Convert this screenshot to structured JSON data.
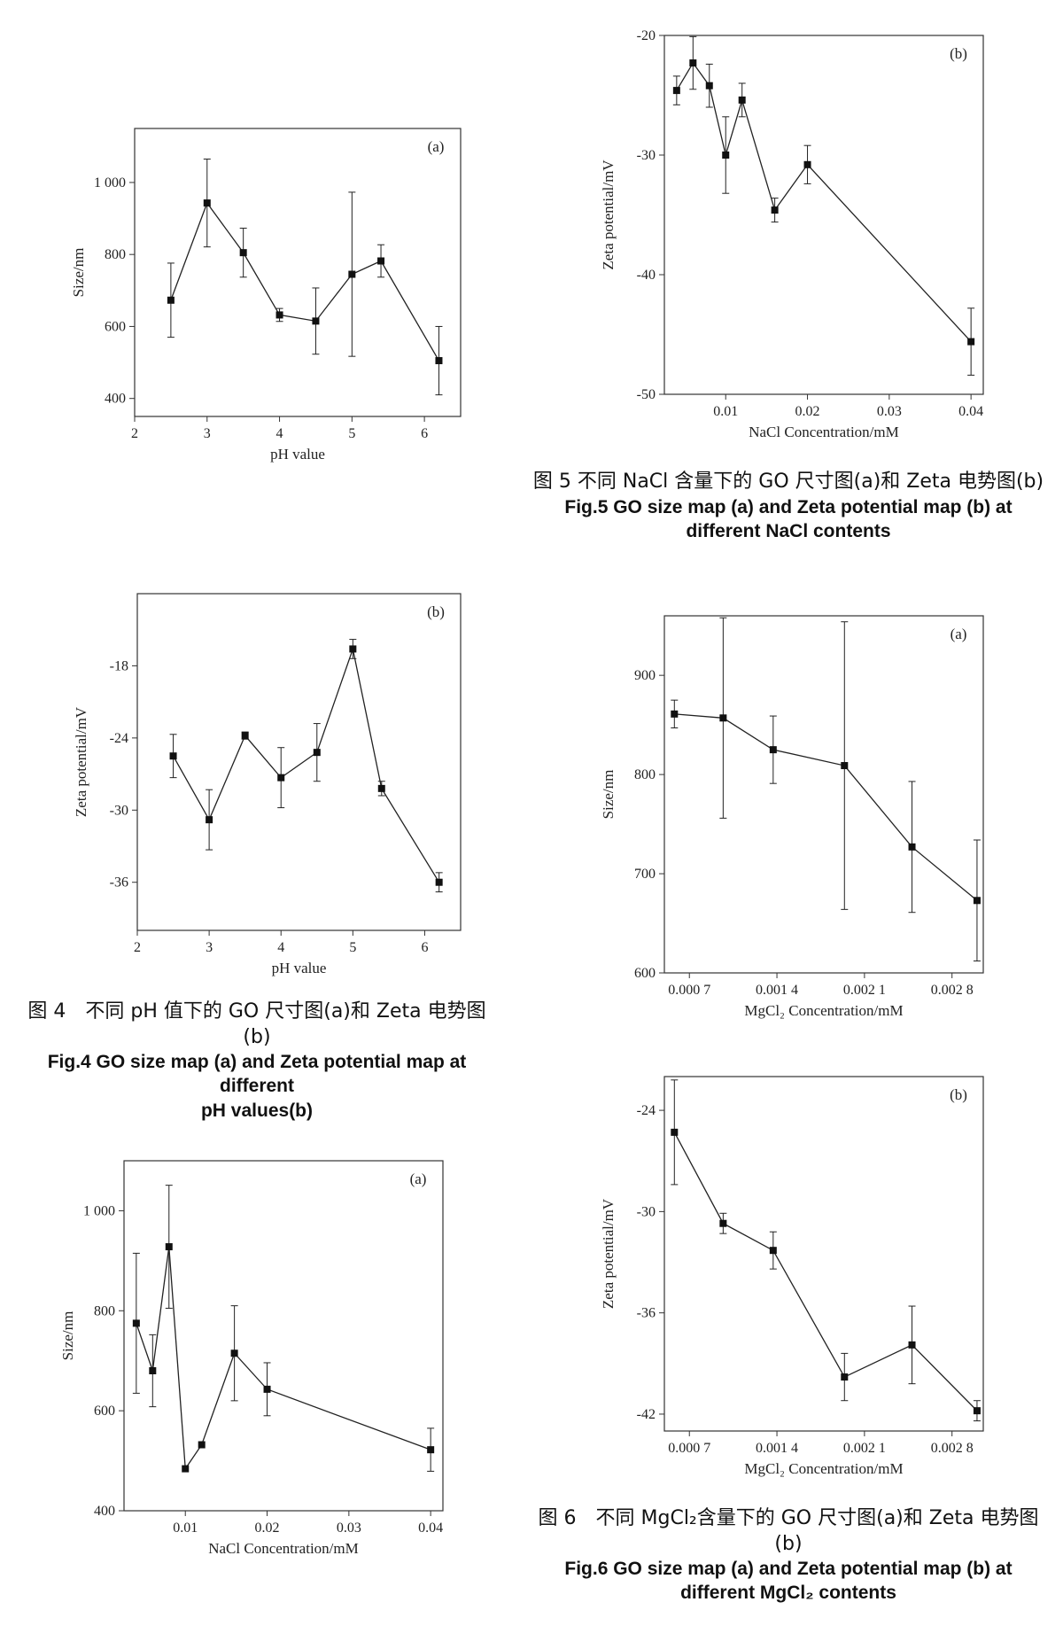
{
  "captions": {
    "fig4": {
      "zh": "图 4　不同 pH 值下的 GO 尺寸图(a)和 Zeta 电势图(b)",
      "en1": "Fig.4 GO size map (a) and Zeta potential map at different",
      "en2": "pH values(b)"
    },
    "fig5": {
      "zh": "图 5  不同 NaCl 含量下的 GO 尺寸图(a)和 Zeta 电势图(b)",
      "en1": "Fig.5 GO size map (a) and Zeta potential map (b) at",
      "en2": "different NaCl contents"
    },
    "fig6": {
      "zh": "图 6　不同 MgCl₂含量下的 GO 尺寸图(a)和 Zeta 电势图(b)",
      "en1": "Fig.6 GO size map (a) and Zeta potential map (b) at",
      "en2": "different MgCl₂ contents"
    }
  },
  "chart_data": [
    {
      "id": "fig4a",
      "type": "line",
      "panel": "(a)",
      "xlabel": "pH value",
      "ylabel": "Size/nm",
      "xlim": [
        2,
        6.5
      ],
      "ylim": [
        350,
        1150
      ],
      "xticks": [
        {
          "v": 2,
          "t": "2"
        },
        {
          "v": 3,
          "t": "3"
        },
        {
          "v": 4,
          "t": "4"
        },
        {
          "v": 5,
          "t": "5"
        },
        {
          "v": 6,
          "t": "6"
        }
      ],
      "yticks": [
        {
          "v": 400,
          "t": "400"
        },
        {
          "v": 600,
          "t": "600"
        },
        {
          "v": 800,
          "t": "800"
        },
        {
          "v": 1000,
          "t": "1 000"
        }
      ],
      "x": [
        2.5,
        3,
        3.5,
        4,
        4.5,
        5,
        5.4,
        6.2
      ],
      "y": [
        673,
        943,
        805,
        632,
        615,
        745,
        782,
        505
      ],
      "err": [
        103,
        122,
        68,
        18,
        92,
        228,
        45,
        95
      ]
    },
    {
      "id": "fig4b",
      "type": "line",
      "panel": "(b)",
      "xlabel": "pH value",
      "ylabel": "Zeta potential/mV",
      "xlim": [
        2,
        6.5
      ],
      "ylim": [
        -40,
        -12
      ],
      "xticks": [
        {
          "v": 2,
          "t": "2"
        },
        {
          "v": 3,
          "t": "3"
        },
        {
          "v": 4,
          "t": "4"
        },
        {
          "v": 5,
          "t": "5"
        },
        {
          "v": 6,
          "t": "6"
        }
      ],
      "yticks": [
        {
          "v": -36,
          "t": "-36"
        },
        {
          "v": -30,
          "t": "-30"
        },
        {
          "v": -24,
          "t": "-24"
        },
        {
          "v": -18,
          "t": "-18"
        }
      ],
      "x": [
        2.5,
        3,
        3.5,
        4,
        4.5,
        5,
        5.4,
        6.2
      ],
      "y": [
        -25.5,
        -30.8,
        -23.8,
        -27.3,
        -25.2,
        -16.6,
        -28.2,
        -36.0
      ],
      "err": [
        1.8,
        2.5,
        0.3,
        2.5,
        2.4,
        0.8,
        0.6,
        0.8
      ]
    },
    {
      "id": "fig5b",
      "type": "line",
      "panel": "(b)",
      "xlabel": "NaCl Concentration/mM",
      "ylabel": "Zeta potential/mV",
      "xlim": [
        0.0025,
        0.0415
      ],
      "ylim": [
        -50,
        -20
      ],
      "xticks": [
        {
          "v": 0.01,
          "t": "0.01"
        },
        {
          "v": 0.02,
          "t": "0.02"
        },
        {
          "v": 0.03,
          "t": "0.03"
        },
        {
          "v": 0.04,
          "t": "0.04"
        }
      ],
      "yticks": [
        {
          "v": -50,
          "t": "-50"
        },
        {
          "v": -40,
          "t": "-40"
        },
        {
          "v": -30,
          "t": "-30"
        },
        {
          "v": -20,
          "t": "-20"
        }
      ],
      "x": [
        0.004,
        0.006,
        0.008,
        0.01,
        0.012,
        0.016,
        0.02,
        0.04
      ],
      "y": [
        -24.6,
        -22.3,
        -24.2,
        -30.0,
        -25.4,
        -34.6,
        -30.8,
        -45.6
      ],
      "err": [
        1.2,
        2.2,
        1.8,
        3.2,
        1.4,
        1.0,
        1.6,
        2.8
      ]
    },
    {
      "id": "fig6a",
      "type": "line",
      "panel": "(a)",
      "xlabel": "MgCl₂ Concentration/mM",
      "ylabel": "Size/nm",
      "xlim": [
        0.0005,
        0.00305
      ],
      "ylim": [
        600,
        960
      ],
      "xticks": [
        {
          "v": 0.0007,
          "t": "0.000 7"
        },
        {
          "v": 0.0014,
          "t": "0.001 4"
        },
        {
          "v": 0.0021,
          "t": "0.002 1"
        },
        {
          "v": 0.0028,
          "t": "0.002 8"
        }
      ],
      "yticks": [
        {
          "v": 600,
          "t": "600"
        },
        {
          "v": 700,
          "t": "700"
        },
        {
          "v": 800,
          "t": "800"
        },
        {
          "v": 900,
          "t": "900"
        }
      ],
      "x": [
        0.00058,
        0.00097,
        0.00137,
        0.00194,
        0.00248,
        0.003
      ],
      "y": [
        861,
        857,
        825,
        809,
        727,
        673
      ],
      "err": [
        14,
        101,
        34,
        145,
        66,
        61
      ]
    },
    {
      "id": "fig6b",
      "type": "line",
      "panel": "(b)",
      "xlabel": "MgCl₂ Concentration/mM",
      "ylabel": "Zeta potential/mV",
      "xlim": [
        0.0005,
        0.00305
      ],
      "ylim": [
        -43,
        -22
      ],
      "xticks": [
        {
          "v": 0.0007,
          "t": "0.000 7"
        },
        {
          "v": 0.0014,
          "t": "0.001 4"
        },
        {
          "v": 0.0021,
          "t": "0.002 1"
        },
        {
          "v": 0.0028,
          "t": "0.002 8"
        }
      ],
      "yticks": [
        {
          "v": -42,
          "t": "-42"
        },
        {
          "v": -36,
          "t": "-36"
        },
        {
          "v": -30,
          "t": "-30"
        },
        {
          "v": -24,
          "t": "-24"
        }
      ],
      "x": [
        0.00058,
        0.00097,
        0.00137,
        0.00194,
        0.00248,
        0.003
      ],
      "y": [
        -25.3,
        -30.7,
        -32.3,
        -39.8,
        -37.9,
        -41.8
      ],
      "err": [
        3.1,
        0.6,
        1.1,
        1.4,
        2.3,
        0.6
      ]
    },
    {
      "id": "fig5a",
      "type": "line",
      "panel": "(a)",
      "xlabel": "NaCl Concentration/mM",
      "ylabel": "Size/nm",
      "xlim": [
        0.0025,
        0.0415
      ],
      "ylim": [
        400,
        1100
      ],
      "xticks": [
        {
          "v": 0.01,
          "t": "0.01"
        },
        {
          "v": 0.02,
          "t": "0.02"
        },
        {
          "v": 0.03,
          "t": "0.03"
        },
        {
          "v": 0.04,
          "t": "0.04"
        }
      ],
      "yticks": [
        {
          "v": 400,
          "t": "400"
        },
        {
          "v": 600,
          "t": "600"
        },
        {
          "v": 800,
          "t": "800"
        },
        {
          "v": 1000,
          "t": "1 000"
        }
      ],
      "x": [
        0.004,
        0.006,
        0.008,
        0.01,
        0.012,
        0.016,
        0.02,
        0.04
      ],
      "y": [
        775,
        680,
        928,
        484,
        532,
        715,
        643,
        522
      ],
      "err": [
        140,
        72,
        123,
        0,
        0,
        95,
        53,
        43
      ]
    }
  ]
}
